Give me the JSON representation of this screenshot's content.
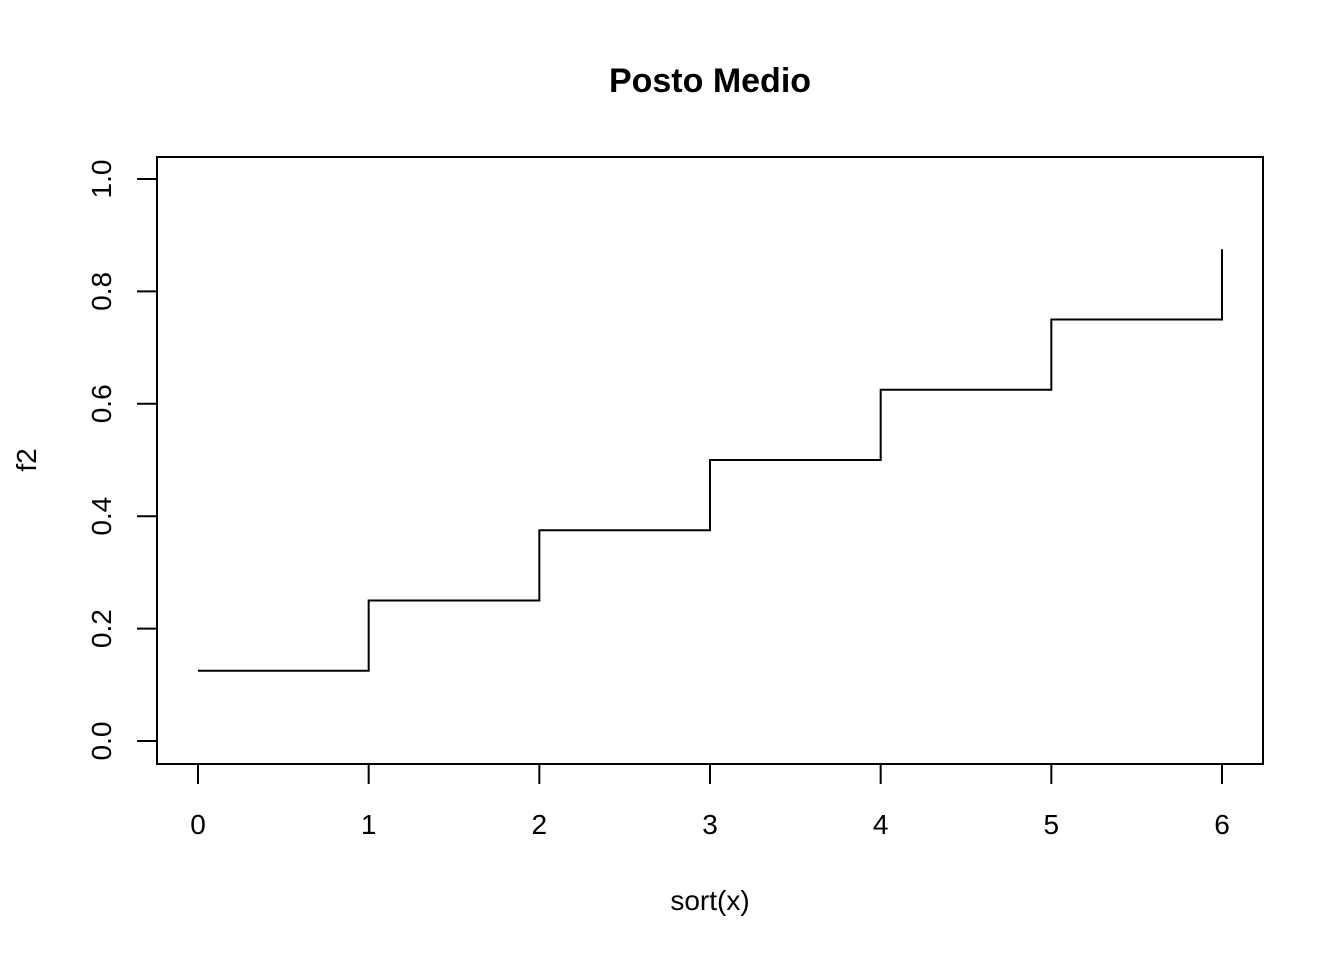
{
  "chart_data": {
    "type": "line",
    "subtype": "step",
    "title": "Posto Medio",
    "xlabel": "sort(x)",
    "ylabel": "f2",
    "xlim": [
      0,
      6
    ],
    "ylim": [
      0,
      1
    ],
    "x_ticks": [
      0,
      1,
      2,
      3,
      4,
      5,
      6
    ],
    "y_ticks": [
      0.0,
      0.2,
      0.4,
      0.6,
      0.8,
      1.0
    ],
    "y_tick_labels": [
      "0.0",
      "0.2",
      "0.4",
      "0.6",
      "0.8",
      "1.0"
    ],
    "grid": false,
    "series": [
      {
        "x": [
          0,
          1,
          2,
          3,
          4,
          5,
          6
        ],
        "y": [
          0.125,
          0.25,
          0.375,
          0.5,
          0.625,
          0.75,
          0.875
        ]
      }
    ],
    "line_color": "#000000"
  }
}
